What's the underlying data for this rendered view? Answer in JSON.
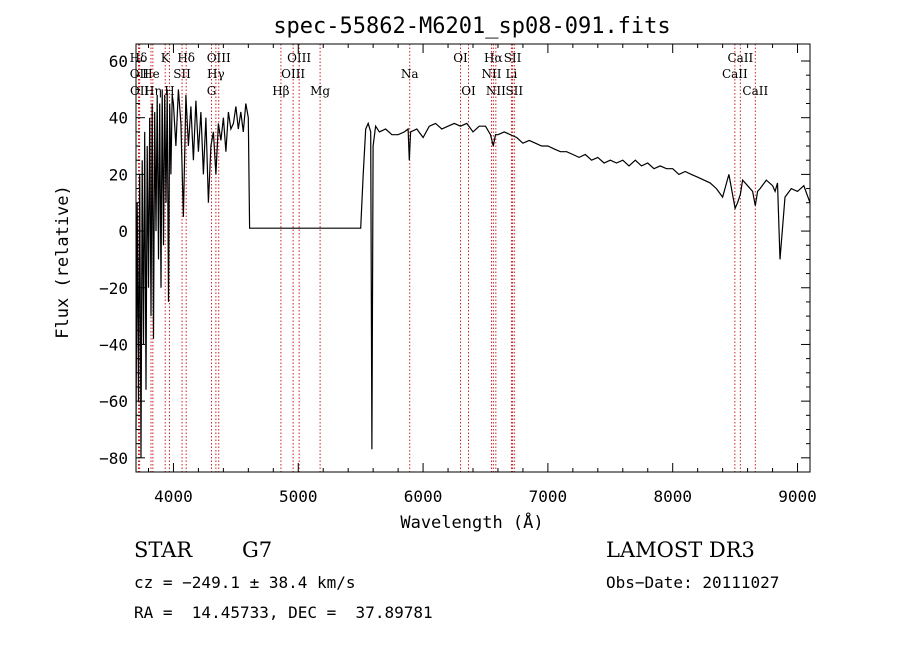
{
  "chart_data": {
    "type": "line",
    "title": "spec-55862-M6201_sp08-091.fits",
    "xlabel": "Wavelength (Å)",
    "ylabel": "Flux (relative)",
    "xlim": [
      3700,
      9100
    ],
    "ylim": [
      -85,
      66
    ],
    "xticks": [
      4000,
      5000,
      6000,
      7000,
      8000,
      9000
    ],
    "xtick_labels": [
      "4000",
      "5000",
      "6000",
      "7000",
      "8000",
      "9000"
    ],
    "yticks": [
      -80,
      -60,
      -40,
      -20,
      0,
      20,
      40,
      60
    ],
    "ytick_labels": [
      "−80",
      "−60",
      "−40",
      "−20",
      "0",
      "20",
      "40",
      "60"
    ],
    "series": [
      {
        "name": "spectrum",
        "color": "#000000",
        "x": [
          3700,
          3710,
          3720,
          3730,
          3740,
          3750,
          3760,
          3770,
          3780,
          3790,
          3800,
          3810,
          3820,
          3830,
          3840,
          3850,
          3860,
          3870,
          3880,
          3890,
          3900,
          3910,
          3920,
          3930,
          3940,
          3950,
          3960,
          3970,
          3980,
          3990,
          4000,
          4020,
          4040,
          4060,
          4080,
          4100,
          4120,
          4140,
          4160,
          4180,
          4200,
          4220,
          4240,
          4260,
          4280,
          4300,
          4320,
          4340,
          4360,
          4380,
          4400,
          4420,
          4440,
          4460,
          4480,
          4500,
          4520,
          4540,
          4560,
          4580,
          4600,
          4610,
          4620,
          4650,
          5000,
          5500,
          5520,
          5540,
          5560,
          5580,
          5590,
          5600,
          5620,
          5650,
          5700,
          5750,
          5800,
          5850,
          5880,
          5890,
          5900,
          5950,
          6000,
          6050,
          6100,
          6150,
          6200,
          6250,
          6300,
          6350,
          6400,
          6450,
          6500,
          6540,
          6563,
          6580,
          6600,
          6650,
          6700,
          6750,
          6800,
          6850,
          6900,
          6950,
          7000,
          7050,
          7100,
          7150,
          7200,
          7250,
          7300,
          7350,
          7400,
          7450,
          7500,
          7550,
          7600,
          7650,
          7700,
          7750,
          7800,
          7850,
          7900,
          7950,
          8000,
          8050,
          8100,
          8150,
          8200,
          8250,
          8300,
          8350,
          8400,
          8450,
          8500,
          8520,
          8542,
          8560,
          8600,
          8640,
          8662,
          8680,
          8700,
          8750,
          8800,
          8820,
          8840,
          8860,
          8900,
          8950,
          9000,
          9050,
          9100
        ],
        "y": [
          -70,
          10,
          -60,
          20,
          -80,
          25,
          -40,
          35,
          -56,
          30,
          -20,
          40,
          -30,
          45,
          -38,
          42,
          0,
          48,
          -10,
          45,
          -20,
          50,
          -5,
          48,
          10,
          50,
          -25,
          45,
          20,
          48,
          45,
          30,
          50,
          38,
          5,
          48,
          30,
          44,
          25,
          46,
          28,
          42,
          20,
          40,
          10,
          30,
          35,
          20,
          38,
          32,
          40,
          28,
          42,
          36,
          38,
          44,
          36,
          42,
          35,
          45,
          40,
          1,
          1,
          1,
          1,
          1,
          20,
          36,
          38,
          35,
          -77,
          30,
          37,
          35,
          36,
          34,
          34,
          35,
          36,
          25,
          35,
          36,
          33,
          37,
          38,
          36,
          37,
          38,
          37,
          38,
          35,
          37,
          37,
          34,
          30,
          34,
          34,
          35,
          34,
          33,
          31,
          32,
          31,
          30,
          30,
          29,
          28,
          28,
          27,
          26,
          27,
          25,
          26,
          24,
          25,
          24,
          25,
          23,
          25,
          23,
          24,
          22,
          23,
          22,
          22,
          20,
          21,
          20,
          19,
          18,
          17,
          15,
          12,
          20,
          8,
          10,
          13,
          18,
          16,
          14,
          9,
          14,
          15,
          18,
          16,
          14,
          17,
          -10,
          12,
          15,
          14,
          16,
          10
        ]
      }
    ],
    "lines": [
      {
        "label": "Hδ",
        "x": 3720,
        "row": 1
      },
      {
        "label": "K",
        "x": 3934,
        "row": 1
      },
      {
        "label": "Hδ",
        "x": 4102,
        "row": 1
      },
      {
        "label": "OIII",
        "x": 4363,
        "row": 1
      },
      {
        "label": "OIII",
        "x": 5007,
        "row": 1
      },
      {
        "label": "OI",
        "x": 6300,
        "row": 1
      },
      {
        "label": "Hα",
        "x": 6563,
        "row": 1
      },
      {
        "label": "SII",
        "x": 6717,
        "row": 1
      },
      {
        "label": "CaII",
        "x": 8542,
        "row": 1
      },
      {
        "label": "OII",
        "x": 3727,
        "row": 2
      },
      {
        "label": "He",
        "x": 3820,
        "row": 2
      },
      {
        "label": "SII",
        "x": 4069,
        "row": 2
      },
      {
        "label": "Hγ",
        "x": 4340,
        "row": 2
      },
      {
        "label": "OIII",
        "x": 4959,
        "row": 2
      },
      {
        "label": "Na",
        "x": 5893,
        "row": 2
      },
      {
        "label": "NII",
        "x": 6548,
        "row": 2
      },
      {
        "label": "Li",
        "x": 6708,
        "row": 2
      },
      {
        "label": "CaII",
        "x": 8498,
        "row": 2
      },
      {
        "label": "OII",
        "x": 3729,
        "row": 3
      },
      {
        "label": "Hη",
        "x": 3835,
        "row": 3
      },
      {
        "label": "H",
        "x": 3968,
        "row": 3
      },
      {
        "label": "G",
        "x": 4305,
        "row": 3
      },
      {
        "label": "Hβ",
        "x": 4861,
        "row": 3
      },
      {
        "label": "Mg",
        "x": 5175,
        "row": 3
      },
      {
        "label": "OI",
        "x": 6364,
        "row": 3
      },
      {
        "label": "NII",
        "x": 6583,
        "row": 3
      },
      {
        "label": "SII",
        "x": 6731,
        "row": 3
      },
      {
        "label": "CaII",
        "x": 8662,
        "row": 3
      }
    ],
    "line_marker_color": "#cc2222",
    "grid": false,
    "legend": "none"
  },
  "info": {
    "object_class": "STAR",
    "subclass": "G7",
    "survey": "LAMOST DR3",
    "cz": "cz = −249.1 ± 38.4 km/s",
    "obs_date": "Obs−Date: 20111027",
    "coords": "RA =  14.45733, DEC =  37.89781"
  }
}
